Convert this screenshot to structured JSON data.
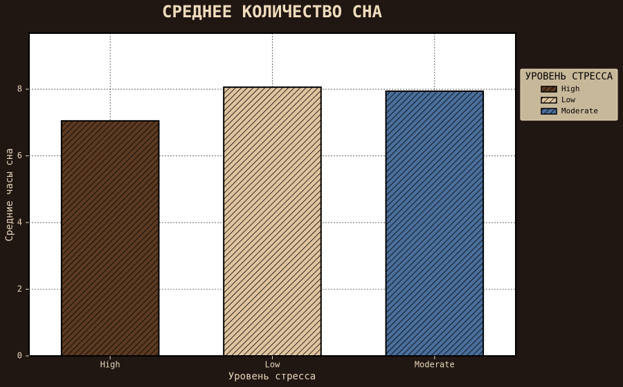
{
  "chart_data": {
    "type": "bar",
    "title": "СРЕДНЕЕ КОЛИЧЕСТВО СНА",
    "x_label": "Уровень стресса",
    "y_label": "Средние часы сна",
    "legend_title": "УРОВЕНЬ СТРЕССА",
    "legend_position": "right",
    "categories": [
      "High",
      "Low",
      "Moderate"
    ],
    "values": [
      7.05,
      8.06,
      7.94
    ],
    "colors": [
      "#5c3a21",
      "#e0c49f",
      "#4a6f9c"
    ],
    "hatch": true,
    "ylim": [
      0,
      9.68
    ],
    "yticks": [
      0,
      2,
      4,
      6,
      8
    ],
    "grid": true
  }
}
